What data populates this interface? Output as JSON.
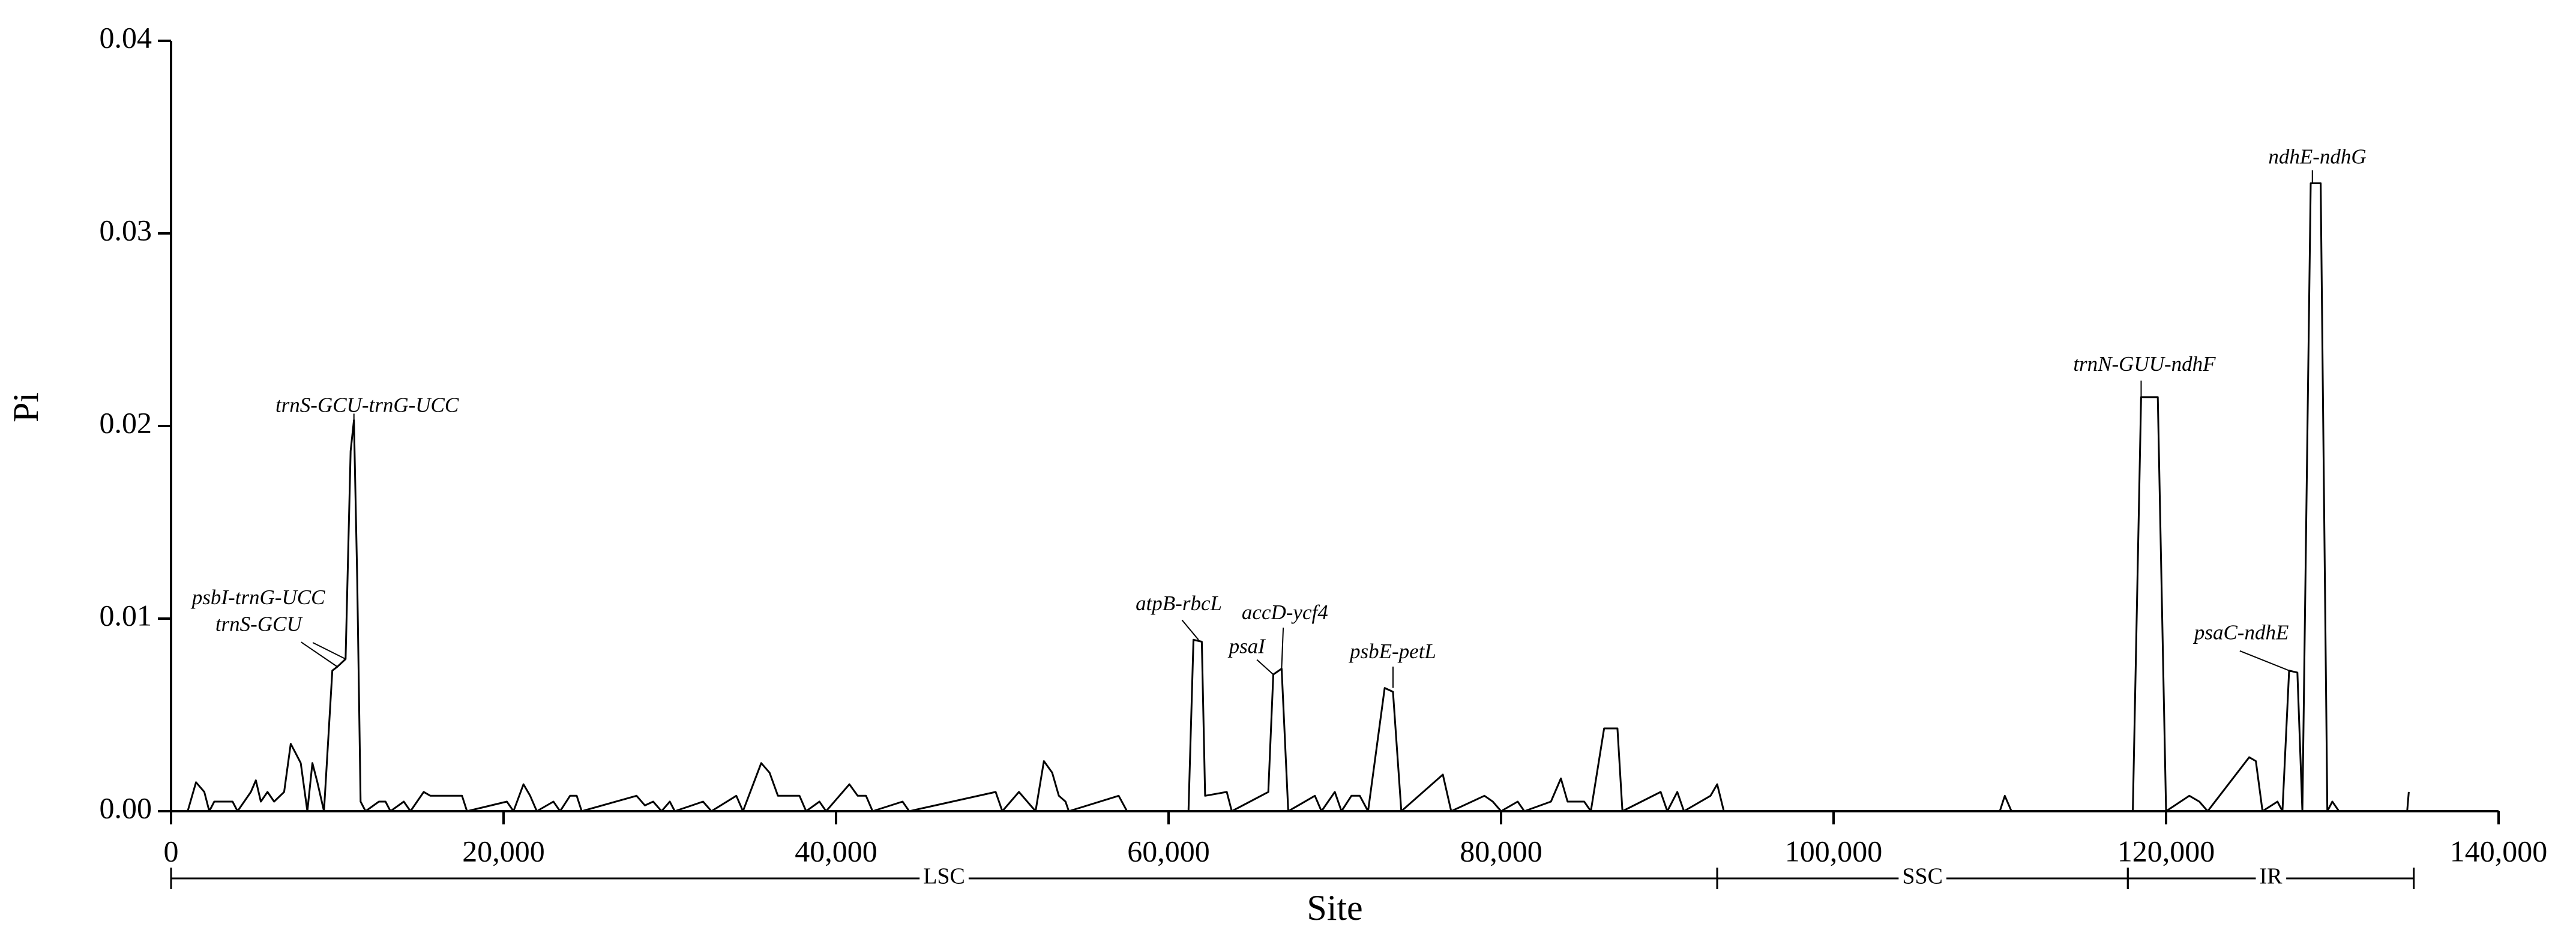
{
  "chart_data": {
    "type": "line",
    "xlabel": "Site",
    "ylabel": "Pi",
    "color": "#000000",
    "xlim": [
      0,
      140000
    ],
    "xticks": [
      0,
      {
        "value": 20000,
        "label": "20,000"
      },
      {
        "value": 40000,
        "label": "40,000"
      },
      {
        "value": 60000,
        "label": "60,000"
      },
      {
        "value": 80000,
        "label": "80,000"
      },
      {
        "value": 100000,
        "label": "100,000"
      },
      {
        "value": 120000,
        "label": "120,000"
      },
      {
        "value": 140000,
        "label": "140,000"
      }
    ],
    "ylim": [
      0,
      0.04
    ],
    "yticks": [
      {
        "value": 0,
        "label": "0.00"
      },
      0.01,
      0.02,
      0.03,
      {
        "value": 0.04,
        "label": "0.04"
      }
    ],
    "x": [
      0,
      1000,
      1500,
      2000,
      2300,
      2600,
      3700,
      4000,
      4800,
      5100,
      5400,
      5800,
      6200,
      6800,
      7200,
      7500,
      7800,
      8200,
      8500,
      8800,
      9200,
      9700,
      10000,
      10500,
      10800,
      11000,
      11200,
      11400,
      11700,
      12500,
      12900,
      13200,
      14000,
      14400,
      15200,
      15600,
      17500,
      17800,
      20200,
      20600,
      21200,
      21600,
      22000,
      23000,
      23400,
      24000,
      24400,
      24700,
      28000,
      28500,
      29000,
      29500,
      30000,
      30300,
      32000,
      32500,
      34000,
      34400,
      35500,
      36000,
      36500,
      37800,
      38200,
      39000,
      39400,
      40800,
      41300,
      41800,
      42200,
      44000,
      44400,
      49600,
      50000,
      51000,
      51500,
      52000,
      52500,
      53000,
      53400,
      53800,
      54000,
      57000,
      57500,
      61200,
      61500,
      62000,
      62200,
      63500,
      63800,
      66000,
      66300,
      66800,
      67200,
      68800,
      69200,
      70000,
      70400,
      71000,
      71500,
      72000,
      73000,
      73500,
      74000,
      76500,
      77000,
      79000,
      79500,
      80000,
      81000,
      81400,
      83000,
      83600,
      84000,
      85000,
      85400,
      86200,
      87000,
      87300,
      89600,
      90000,
      90600,
      91000,
      92600,
      93000,
      93400,
      110000,
      110300,
      110700,
      118000,
      118500,
      119500,
      120000,
      121400,
      122000,
      122500,
      125000,
      125400,
      125800,
      126700,
      127000,
      127400,
      127900,
      128200,
      128700,
      129300,
      129700,
      130000,
      130400,
      134500,
      134600
    ],
    "series": [
      {
        "name": "Pi",
        "values": [
          0,
          0,
          0.0015,
          0.001,
          0,
          0.0005,
          0.0005,
          0,
          0.001,
          0.0016,
          0.0005,
          0.001,
          0.0005,
          0.001,
          0.0035,
          0.003,
          0.0025,
          0,
          0.0025,
          0.0015,
          0,
          0.0073,
          0.0075,
          0.0079,
          0.0187,
          0.0203,
          0.012,
          0.0005,
          0,
          0.0005,
          0.0005,
          0,
          0.0005,
          0,
          0.001,
          0.0008,
          0.0008,
          0,
          0.0005,
          0,
          0.0014,
          0.0008,
          0,
          0.0005,
          0,
          0.0008,
          0.0008,
          0,
          0.0008,
          0.0003,
          0.0005,
          0,
          0.0005,
          0,
          0.0005,
          0,
          0.0008,
          0,
          0.0025,
          0.002,
          0.0008,
          0.0008,
          0,
          0.0005,
          0,
          0.0014,
          0.0008,
          0.0008,
          0,
          0.0005,
          0,
          0.001,
          0,
          0.001,
          0.0005,
          0,
          0.0026,
          0.002,
          0.0008,
          0.0005,
          0,
          0.0008,
          0,
          0,
          0.0089,
          0.0088,
          0.0008,
          0.001,
          0,
          0.001,
          0.0071,
          0.0074,
          0,
          0.0008,
          0,
          0.001,
          0,
          0.0008,
          0.0008,
          0,
          0.0064,
          0.0062,
          0,
          0.0019,
          0,
          0.0008,
          0.0005,
          0,
          0.0005,
          0,
          0.0005,
          0.0017,
          0.0005,
          0.0005,
          0,
          0.0043,
          0.0043,
          0,
          0.001,
          0,
          0.001,
          0,
          0.0008,
          0.0014,
          0,
          0,
          0.0008,
          0,
          0,
          0.0215,
          0.0215,
          0,
          0.0008,
          0.0005,
          0,
          0.0028,
          0.0026,
          0,
          0.0005,
          0,
          0.0073,
          0.0072,
          0,
          0.0326,
          0.0326,
          0,
          0.0005,
          0,
          0,
          0.001
        ]
      }
    ],
    "regions": [
      {
        "name": "LSC",
        "start": 0,
        "end": 93000
      },
      {
        "name": "SSC",
        "start": 93000,
        "end": 117700
      },
      {
        "name": "IR",
        "start": 117700,
        "end": 134900
      }
    ],
    "annotations": [
      {
        "text": "trnS-GCU-trnG-UCC",
        "x": 11000,
        "y": 0.0203
      },
      {
        "text": "psbI-trnG-UCC",
        "x": 10000,
        "y": 0.0075
      },
      {
        "text": "trnS-GCU",
        "x": 10500,
        "y": 0.0079
      },
      {
        "text": "atpB-rbcL",
        "x": 61800,
        "y": 0.0089
      },
      {
        "text": "psaI",
        "x": 66300,
        "y": 0.0071
      },
      {
        "text": "accD-ycf4",
        "x": 66800,
        "y": 0.0074
      },
      {
        "text": "psbE-petL",
        "x": 73500,
        "y": 0.0064
      },
      {
        "text": "trnN-GUU-ndhF",
        "x": 118500,
        "y": 0.0215
      },
      {
        "text": "psaC-ndhE",
        "x": 127400,
        "y": 0.0073
      },
      {
        "text": "ndhE-ndhG",
        "x": 128800,
        "y": 0.0326
      }
    ]
  }
}
